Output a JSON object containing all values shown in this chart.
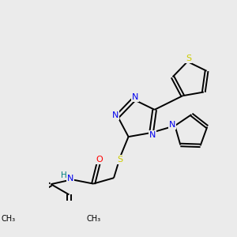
{
  "bg_color": "#ebebeb",
  "atom_colors": {
    "C": "#000000",
    "N": "#0000ee",
    "S": "#cccc00",
    "O": "#ff0000",
    "H": "#008080"
  },
  "bond_color": "#000000",
  "figsize": [
    3.0,
    3.0
  ],
  "dpi": 100,
  "lw": 1.4
}
